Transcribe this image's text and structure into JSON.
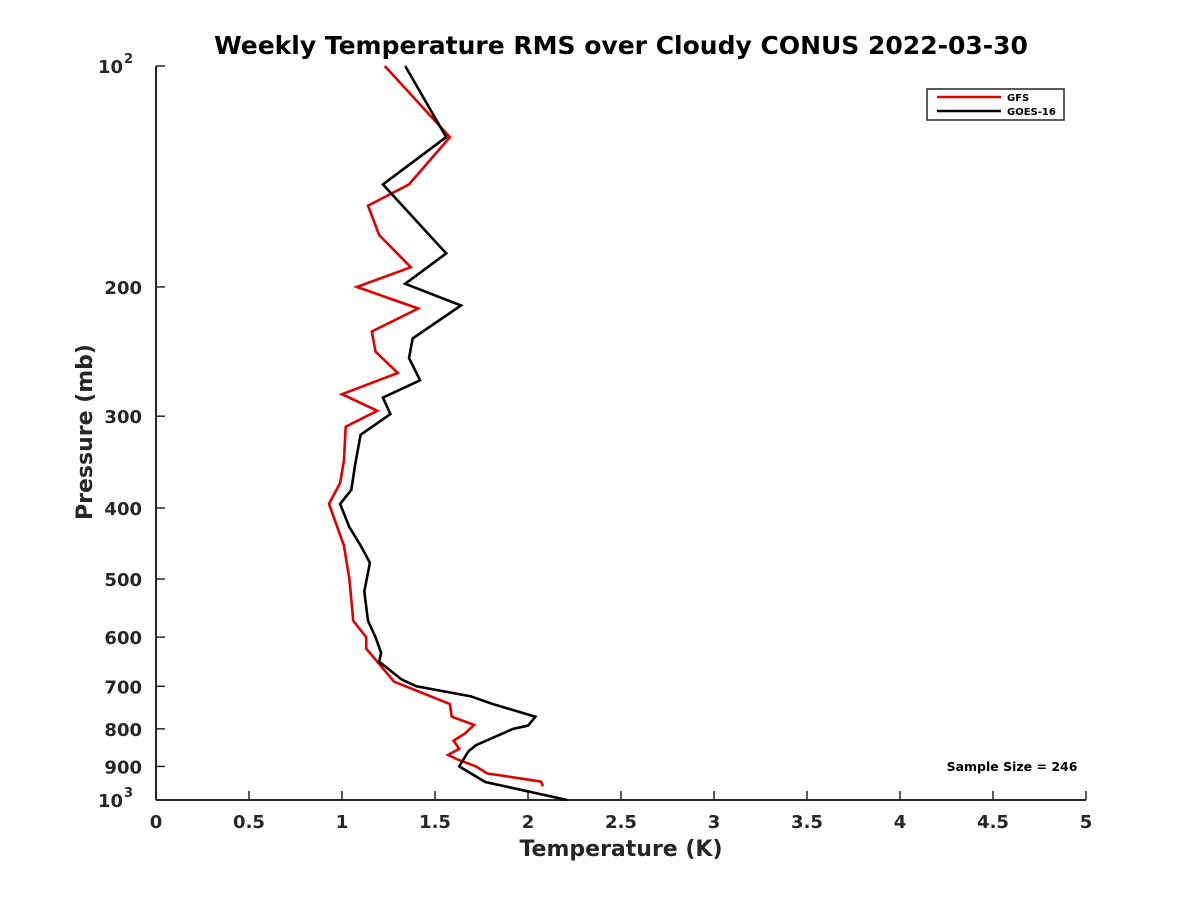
{
  "chart_data": {
    "type": "line",
    "title": "Weekly Temperature RMS over Cloudy CONUS 2022-03-30",
    "xlabel": "Temperature (K)",
    "ylabel": "Pressure (mb)",
    "xlim": [
      0,
      5
    ],
    "ylim": [
      100,
      1000
    ],
    "y_scale": "log",
    "y_reversed": true,
    "grid": false,
    "legend_position": "top-right",
    "x_ticks": [
      "0",
      "0.5",
      "1",
      "1.5",
      "2",
      "2.5",
      "3",
      "3.5",
      "4",
      "4.5",
      "5"
    ],
    "x_tick_values": [
      0,
      0.5,
      1,
      1.5,
      2,
      2.5,
      3,
      3.5,
      4,
      4.5,
      5
    ],
    "y_ticks": [
      {
        "value": 100,
        "base": "10",
        "exp": "2"
      },
      {
        "value": 200,
        "label": "200"
      },
      {
        "value": 300,
        "label": "300"
      },
      {
        "value": 400,
        "label": "400"
      },
      {
        "value": 500,
        "label": "500"
      },
      {
        "value": 600,
        "label": "600"
      },
      {
        "value": 700,
        "label": "700"
      },
      {
        "value": 800,
        "label": "800"
      },
      {
        "value": 900,
        "label": "900"
      },
      {
        "value": 1000,
        "base": "10",
        "exp": "3"
      }
    ],
    "annotation": "Sample Size = 246",
    "series": [
      {
        "name": "GFS",
        "color": "#e00000",
        "points": [
          [
            1.23,
            100
          ],
          [
            1.58,
            125
          ],
          [
            1.36,
            145
          ],
          [
            1.14,
            155
          ],
          [
            1.2,
            170
          ],
          [
            1.37,
            188
          ],
          [
            1.08,
            200
          ],
          [
            1.41,
            214
          ],
          [
            1.16,
            230
          ],
          [
            1.18,
            245
          ],
          [
            1.3,
            262
          ],
          [
            1.0,
            280
          ],
          [
            1.19,
            295
          ],
          [
            1.02,
            310
          ],
          [
            1.01,
            345
          ],
          [
            0.99,
            370
          ],
          [
            0.93,
            395
          ],
          [
            0.96,
            415
          ],
          [
            1.01,
            450
          ],
          [
            1.04,
            500
          ],
          [
            1.06,
            570
          ],
          [
            1.13,
            600
          ],
          [
            1.13,
            622
          ],
          [
            1.19,
            648
          ],
          [
            1.28,
            690
          ],
          [
            1.58,
            740
          ],
          [
            1.59,
            770
          ],
          [
            1.71,
            790
          ],
          [
            1.66,
            812
          ],
          [
            1.6,
            830
          ],
          [
            1.63,
            852
          ],
          [
            1.57,
            868
          ],
          [
            1.62,
            880
          ],
          [
            1.72,
            900
          ],
          [
            1.78,
            920
          ],
          [
            2.07,
            944
          ],
          [
            2.08,
            958
          ]
        ]
      },
      {
        "name": "GOES-16",
        "color": "#000000",
        "points": [
          [
            1.34,
            100
          ],
          [
            1.56,
            125
          ],
          [
            1.22,
            145
          ],
          [
            1.56,
            180
          ],
          [
            1.34,
            198
          ],
          [
            1.64,
            212
          ],
          [
            1.38,
            235
          ],
          [
            1.36,
            250
          ],
          [
            1.42,
            268
          ],
          [
            1.22,
            283
          ],
          [
            1.26,
            298
          ],
          [
            1.1,
            318
          ],
          [
            1.07,
            350
          ],
          [
            1.05,
            378
          ],
          [
            0.99,
            395
          ],
          [
            1.04,
            425
          ],
          [
            1.1,
            450
          ],
          [
            1.15,
            475
          ],
          [
            1.12,
            520
          ],
          [
            1.14,
            570
          ],
          [
            1.18,
            600
          ],
          [
            1.21,
            630
          ],
          [
            1.2,
            648
          ],
          [
            1.32,
            685
          ],
          [
            1.4,
            700
          ],
          [
            1.69,
            722
          ],
          [
            1.81,
            740
          ],
          [
            2.04,
            770
          ],
          [
            2.0,
            792
          ],
          [
            1.92,
            800
          ],
          [
            1.72,
            842
          ],
          [
            1.68,
            858
          ],
          [
            1.63,
            900
          ],
          [
            1.77,
            945
          ],
          [
            2.21,
            1000
          ]
        ]
      }
    ]
  }
}
